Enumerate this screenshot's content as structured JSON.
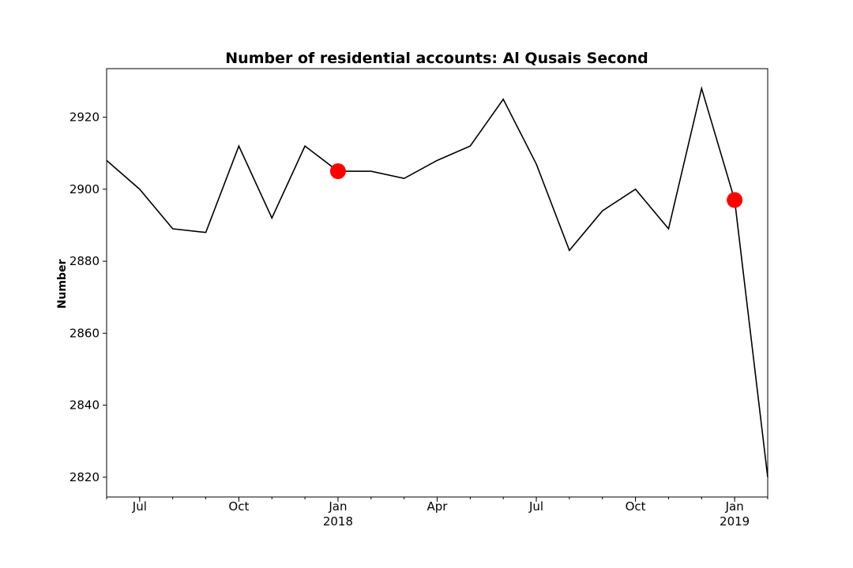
{
  "chart_data": {
    "type": "line",
    "title": "Number of residential accounts: Al Qusais Second",
    "xlabel": "",
    "ylabel": "Number",
    "x": [
      "2017-06",
      "2017-07",
      "2017-08",
      "2017-09",
      "2017-10",
      "2017-11",
      "2017-12",
      "2018-01",
      "2018-02",
      "2018-03",
      "2018-04",
      "2018-05",
      "2018-06",
      "2018-07",
      "2018-08",
      "2018-09",
      "2018-10",
      "2018-11",
      "2018-12",
      "2019-01",
      "2019-02"
    ],
    "series": [
      {
        "color": "#000000",
        "values": [
          2908,
          2900,
          2889,
          2888,
          2912,
          2892,
          2912,
          2905,
          2905,
          2903,
          2908,
          2912,
          2925,
          2907,
          2883,
          2894,
          2900,
          2889,
          2928,
          2897,
          2820
        ]
      }
    ],
    "highlights": {
      "color": "#ff0000",
      "points": [
        {
          "x": "2018-01",
          "y": 2905
        },
        {
          "x": "2019-01",
          "y": 2897
        }
      ]
    },
    "xlim": [
      "2017-06",
      "2019-02"
    ],
    "ylim": [
      2814.5,
      2933.5
    ],
    "yticks": [
      2820,
      2840,
      2860,
      2880,
      2900,
      2920
    ],
    "xticks_major": [
      {
        "x": "2017-07",
        "label": "Jul",
        "sublabel": ""
      },
      {
        "x": "2017-10",
        "label": "Oct",
        "sublabel": ""
      },
      {
        "x": "2018-01",
        "label": "Jan",
        "sublabel": "2018"
      },
      {
        "x": "2018-04",
        "label": "Apr",
        "sublabel": ""
      },
      {
        "x": "2018-07",
        "label": "Jul",
        "sublabel": ""
      },
      {
        "x": "2018-10",
        "label": "Oct",
        "sublabel": ""
      },
      {
        "x": "2019-01",
        "label": "Jan",
        "sublabel": "2019"
      }
    ],
    "grid": false,
    "legend": "none"
  }
}
